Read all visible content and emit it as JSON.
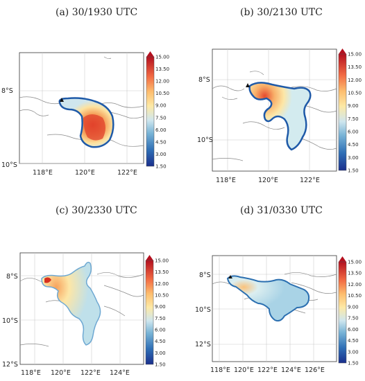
{
  "figure": {
    "panels": [
      {
        "title": "(a) 30/1930 UTC",
        "lon_ticks": [
          "118°E",
          "120°E",
          "122°E"
        ],
        "lat_ticks": [
          "8°S",
          "10°S"
        ]
      },
      {
        "title": "(b) 30/2130 UTC",
        "lon_ticks": [
          "118°E",
          "120°E",
          "122°E"
        ],
        "lat_ticks": [
          "8°S",
          "10°S"
        ]
      },
      {
        "title": "(c) 30/2330 UTC",
        "lon_ticks": [
          "118°E",
          "120°E",
          "122°E",
          "124°E"
        ],
        "lat_ticks": [
          "8°S",
          "10°S",
          "12°S"
        ]
      },
      {
        "title": "(d) 31/0330 UTC",
        "lon_ticks": [
          "118°E",
          "120°E",
          "122°E",
          "124°E",
          "126°E"
        ],
        "lat_ticks": [
          "8°S",
          "10°S",
          "12°S"
        ]
      }
    ],
    "colorbar": {
      "ticks": [
        "15.00",
        "13.50",
        "12.00",
        "10.50",
        "9.00",
        "7.50",
        "6.00",
        "4.50",
        "3.00",
        "1.50"
      ],
      "colors": [
        "#08306b",
        "#2166ac",
        "#4393c3",
        "#92c5de",
        "#d1e5f0",
        "#fee090",
        "#fdae61",
        "#f46d43",
        "#d73027",
        "#a50026"
      ]
    }
  }
}
